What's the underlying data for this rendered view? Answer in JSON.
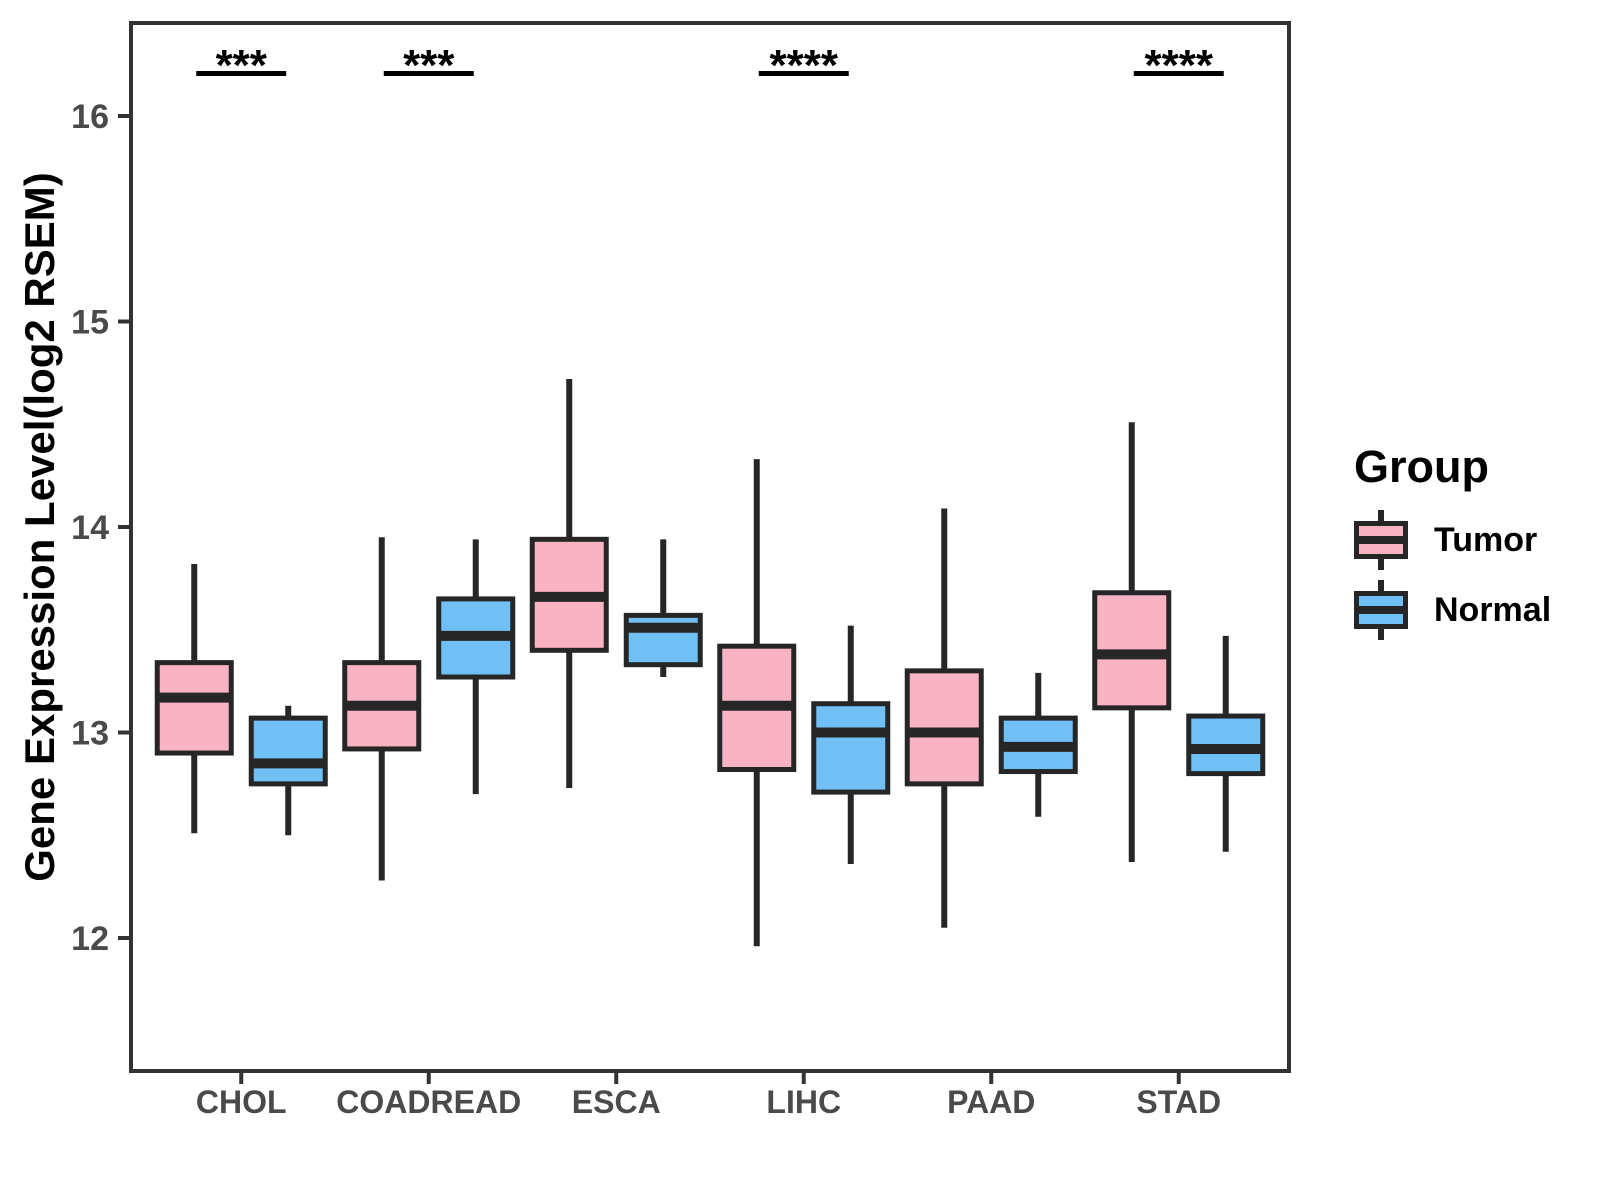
{
  "chart_data": {
    "type": "boxplot",
    "title": "",
    "xlabel": "",
    "ylabel": "Gene Expression Level(log2 RSEM)",
    "ylim": [
      11.35,
      16.45
    ],
    "yticks": [
      12,
      13,
      14,
      15,
      16
    ],
    "grid": false,
    "categories": [
      "CHOL",
      "COADREAD",
      "ESCA",
      "LIHC",
      "PAAD",
      "STAD"
    ],
    "legend": {
      "title": "Group",
      "position": "right",
      "entries": [
        {
          "label": "Tumor",
          "color": "#FAB3C3"
        },
        {
          "label": "Normal",
          "color": "#70BFF5"
        }
      ]
    },
    "series": [
      {
        "name": "Tumor",
        "color": "#FAB3C3",
        "boxes": [
          {
            "category": "CHOL",
            "low": 12.51,
            "q1": 12.9,
            "median": 13.17,
            "q3": 13.34,
            "high": 13.82
          },
          {
            "category": "COADREAD",
            "low": 12.28,
            "q1": 12.92,
            "median": 13.13,
            "q3": 13.34,
            "high": 13.95
          },
          {
            "category": "ESCA",
            "low": 12.73,
            "q1": 13.4,
            "median": 13.66,
            "q3": 13.94,
            "high": 14.72
          },
          {
            "category": "LIHC",
            "low": 11.96,
            "q1": 12.82,
            "median": 13.13,
            "q3": 13.42,
            "high": 14.33
          },
          {
            "category": "PAAD",
            "low": 12.05,
            "q1": 12.75,
            "median": 13.0,
            "q3": 13.3,
            "high": 14.09
          },
          {
            "category": "STAD",
            "low": 12.37,
            "q1": 13.12,
            "median": 13.38,
            "q3": 13.68,
            "high": 14.51
          }
        ]
      },
      {
        "name": "Normal",
        "color": "#70BFF5",
        "boxes": [
          {
            "category": "CHOL",
            "low": 12.5,
            "q1": 12.75,
            "median": 12.85,
            "q3": 13.07,
            "high": 13.13
          },
          {
            "category": "COADREAD",
            "low": 12.7,
            "q1": 13.27,
            "median": 13.47,
            "q3": 13.65,
            "high": 13.94
          },
          {
            "category": "ESCA",
            "low": 13.27,
            "q1": 13.33,
            "median": 13.51,
            "q3": 13.57,
            "high": 13.94
          },
          {
            "category": "LIHC",
            "low": 12.36,
            "q1": 12.71,
            "median": 13.0,
            "q3": 13.14,
            "high": 13.52
          },
          {
            "category": "PAAD",
            "low": 12.59,
            "q1": 12.81,
            "median": 12.93,
            "q3": 13.07,
            "high": 13.29
          },
          {
            "category": "STAD",
            "low": 12.42,
            "q1": 12.8,
            "median": 12.92,
            "q3": 13.08,
            "high": 13.47
          }
        ]
      }
    ],
    "significance": [
      {
        "category": "CHOL",
        "label": "***"
      },
      {
        "category": "COADREAD",
        "label": "***"
      },
      {
        "category": "LIHC",
        "label": "****"
      },
      {
        "category": "STAD",
        "label": "****"
      }
    ]
  },
  "styles": {
    "box_stroke": "#262626",
    "axis_color": "#333333",
    "tick_label_color": "#4A4A4A",
    "significance_color": "#000000",
    "background": "#FFFFFF"
  }
}
